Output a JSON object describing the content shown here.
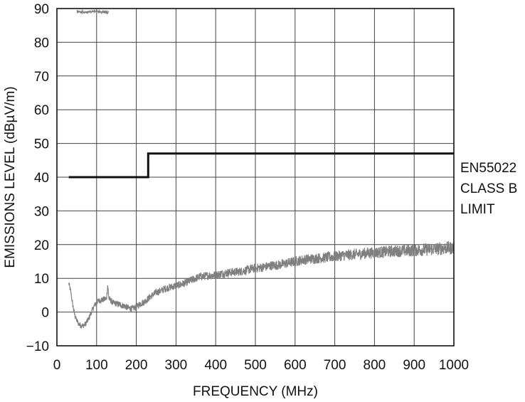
{
  "chart_data": {
    "type": "line",
    "xlabel": "FREQUENCY (MHz)",
    "ylabel": "EMISSIONS LEVEL (dBµV/m)",
    "xlim": [
      0,
      1000
    ],
    "ylim": [
      -10,
      90
    ],
    "x_ticks": [
      "0",
      "100",
      "200",
      "300",
      "400",
      "500",
      "600",
      "700",
      "800",
      "900",
      "1000"
    ],
    "y_ticks": [
      "−10",
      "0",
      "10",
      "20",
      "30",
      "40",
      "50",
      "60",
      "70",
      "80",
      "90"
    ],
    "grid": true,
    "colors": {
      "limit": "#111111",
      "emissions": "#7f7f7f",
      "grid": "#444444"
    },
    "series": [
      {
        "name": "EN55022 CLASS B LIMIT",
        "label_lines": [
          "EN55022",
          "CLASS B",
          "LIMIT"
        ],
        "style": "step",
        "x": [
          30,
          230,
          230,
          1000
        ],
        "y": [
          40,
          40,
          47,
          47
        ]
      },
      {
        "style": "noisy",
        "x": [
          30,
          35,
          40,
          45,
          50,
          55,
          60,
          65,
          70,
          75,
          80,
          85,
          90,
          95,
          100,
          110,
          120,
          125,
          128,
          131,
          135,
          140,
          150,
          160,
          170,
          180,
          190,
          200,
          210,
          220,
          230,
          240,
          250,
          260,
          270,
          280,
          300,
          320,
          340,
          360,
          380,
          400,
          420,
          440,
          460,
          480,
          500,
          520,
          540,
          560,
          580,
          600,
          620,
          640,
          660,
          680,
          700,
          720,
          740,
          760,
          780,
          800,
          820,
          840,
          860,
          880,
          900,
          920,
          940,
          960,
          980,
          1000
        ],
        "y": [
          8.5,
          6,
          2,
          -1,
          -2.5,
          -3.5,
          -4,
          -4,
          -3.8,
          -3,
          -2,
          -0.5,
          0.8,
          2,
          3,
          3.5,
          3.8,
          4,
          8,
          4,
          3.5,
          2.8,
          2.5,
          2.2,
          1.8,
          1.2,
          1,
          1.5,
          2.5,
          3,
          4,
          5,
          5.8,
          6.2,
          6.8,
          7.2,
          7.8,
          8.5,
          9.5,
          10.5,
          10.8,
          11,
          11.5,
          11.8,
          12,
          12.5,
          13,
          13.3,
          13.8,
          14,
          14.5,
          15,
          15.5,
          15.8,
          16,
          16.2,
          16.5,
          16.8,
          17,
          17.2,
          17.5,
          17.6,
          17.8,
          18,
          18.1,
          18.2,
          18.3,
          18.5,
          18.6,
          18.8,
          19,
          19
        ]
      }
    ],
    "clipped_trace_near_top": {
      "x": [
        50,
        130
      ],
      "y": 89.5
    }
  }
}
